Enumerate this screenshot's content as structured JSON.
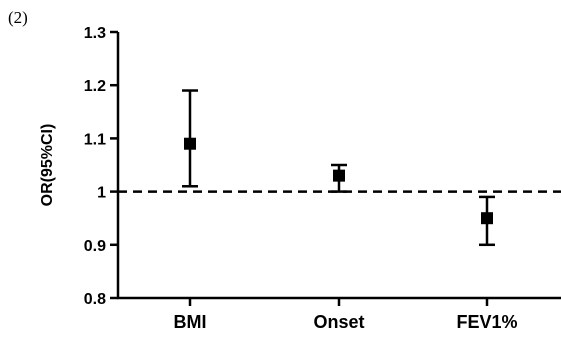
{
  "panel_label": "(2)",
  "chart_data": {
    "type": "scatter",
    "title": "",
    "xlabel": "",
    "ylabel": "OR(95%CI)",
    "categories": [
      "BMI",
      "Onset",
      "FEV1%"
    ],
    "series": [
      {
        "values": [
          1.09,
          1.03,
          0.95
        ],
        "lower": [
          1.01,
          1.0,
          0.9
        ],
        "upper": [
          1.19,
          1.05,
          0.99
        ]
      }
    ],
    "ylim": [
      0.8,
      1.3
    ],
    "yticks": [
      0.8,
      0.9,
      1.0,
      1.1,
      1.2,
      1.3
    ],
    "ytick_labels": [
      "0.8",
      "0.9",
      "1",
      "1.1",
      "1.2",
      "1.3"
    ],
    "reference_line": 1.0,
    "grid": false,
    "legend": "none",
    "colors": {
      "marker": "#000000",
      "axis": "#000000"
    }
  }
}
